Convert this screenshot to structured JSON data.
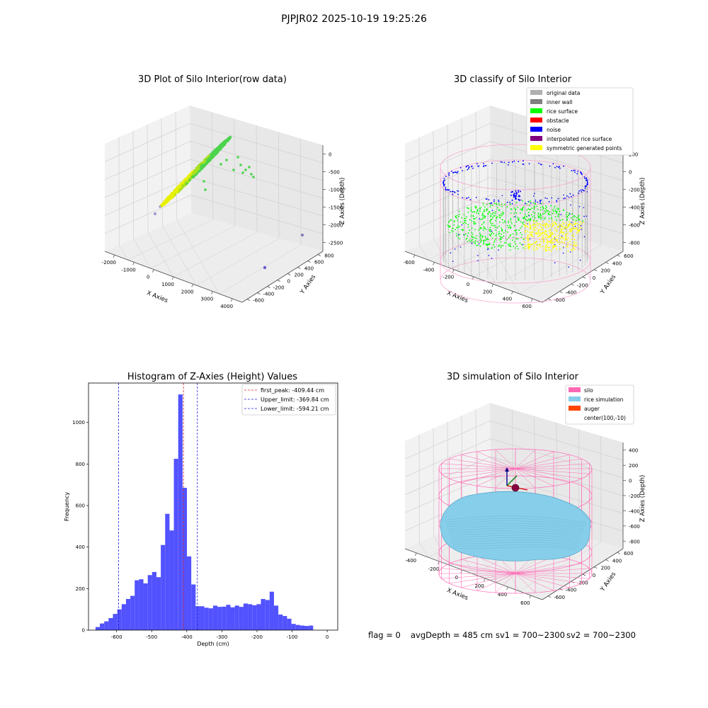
{
  "suptitle": "PJPJR02 2025-10-19 19:25:26",
  "status_line": {
    "flag": "flag = 0",
    "avg_depth": "avgDepth = 485 cm",
    "sv1": "sv1 = 700~2300",
    "sv2": "sv2 = 700~2300"
  },
  "colors": {
    "hist_bar": "#5252ff",
    "peak_line": "#e02020",
    "limit_line": "#2020e0",
    "rice_yellow": "#e8f000",
    "rice_green": "#4cd44c",
    "silo_pink": "#ff69b4",
    "rice_blue": "#87ceeb",
    "auger": "#ff4500",
    "inner_wall": "#808080",
    "original": "#b0b0b0",
    "noise": "#0000ff",
    "rice_surface": "#00ff00",
    "obstacle": "#ff0000",
    "interp": "#800080",
    "sym": "#ffff00"
  },
  "chart_data": [
    {
      "type": "scatter",
      "title": "3D Plot of Silo Interior(row data)",
      "xlabel": "X Axies",
      "ylabel": "Y Axies",
      "zlabel": "Z Axies (Depth)",
      "x_ticks": [
        "-2000",
        "-1000",
        "0",
        "1000",
        "2000",
        "3000",
        "4000"
      ],
      "y_ticks": [
        "-600",
        "-400",
        "-200",
        "0",
        "200",
        "400",
        "600",
        "800"
      ],
      "z_ticks": [
        "0",
        "-500",
        "-1000",
        "-1500",
        "-2000",
        "-2500"
      ],
      "xlim": [
        -2400,
        4200
      ],
      "ylim": [
        -700,
        900
      ],
      "zlim": [
        -2800,
        100
      ]
    },
    {
      "type": "scatter",
      "title": "3D classify of Silo Interior",
      "xlabel": "X Axies",
      "ylabel": "Y Axies",
      "zlabel": "Z Axies (Depth)",
      "x_ticks": [
        "-600",
        "-400",
        "-200",
        "0",
        "200",
        "400",
        "600"
      ],
      "y_ticks": [
        "-600",
        "-400",
        "-200",
        "0",
        "200",
        "400",
        "600"
      ],
      "z_ticks": [
        "200",
        "0",
        "-200",
        "-400",
        "-600",
        "-800"
      ],
      "legend": [
        {
          "label": "original data",
          "color": "#b0b0b0"
        },
        {
          "label": "inner wall",
          "color": "#808080"
        },
        {
          "label": "rice surface",
          "color": "#00ff00"
        },
        {
          "label": "obstacle",
          "color": "#ff0000"
        },
        {
          "label": "noise",
          "color": "#0000ff"
        },
        {
          "label": "interpolated rice surface",
          "color": "#800080"
        },
        {
          "label": "symmetric generated points",
          "color": "#ffff00"
        }
      ],
      "legend_placement": "upper right"
    },
    {
      "type": "bar",
      "title": "Histogram of Z-Axies (Height) Values",
      "xlabel": "Depth (cm)",
      "ylabel": "Frequency",
      "x_ticks": [
        -600,
        -500,
        -400,
        -300,
        -200,
        -100,
        0
      ],
      "y_ticks": [
        0,
        200,
        400,
        600,
        800,
        1000
      ],
      "xlim": [
        -680,
        30
      ],
      "ylim": [
        0,
        1190
      ],
      "bin_start": -660,
      "bin_width": 12.4,
      "values": [
        15,
        32,
        42,
        58,
        78,
        100,
        125,
        150,
        165,
        240,
        245,
        225,
        265,
        280,
        255,
        410,
        560,
        480,
        825,
        1135,
        685,
        355,
        220,
        115,
        115,
        108,
        105,
        118,
        112,
        113,
        122,
        110,
        118,
        112,
        128,
        125,
        120,
        125,
        150,
        145,
        185,
        118,
        75,
        68,
        55,
        30,
        25,
        22,
        20,
        22
      ],
      "lines": [
        {
          "label": "first_peak: -409.44 cm",
          "x": -409.44,
          "color": "#e02020"
        },
        {
          "label": "Upper_limit: -369.84 cm",
          "x": -369.84,
          "color": "#2020e0"
        },
        {
          "label": "Lower_limit: -594.21 cm",
          "x": -594.21,
          "color": "#2020e0"
        }
      ],
      "legend_placement": "upper right",
      "grid": false
    },
    {
      "type": "scatter",
      "title": "3D simulation of Silo Interior",
      "xlabel": "X Axies",
      "ylabel": "Y Axies",
      "zlabel": "Z Axies (Depth)",
      "x_ticks": [
        "-400",
        "-200",
        "0",
        "200",
        "400",
        "600"
      ],
      "y_ticks": [
        "-600",
        "-400",
        "-200",
        "0",
        "200",
        "400",
        "600"
      ],
      "z_ticks": [
        "400",
        "200",
        "0",
        "-200",
        "-400",
        "-600",
        "-800"
      ],
      "legend": [
        {
          "label": "silo",
          "color": "#ff69b4"
        },
        {
          "label": "rice simulation",
          "color": "#87ceeb"
        },
        {
          "label": "auger",
          "color": "#ff4500"
        },
        {
          "label": "center(100,-10)",
          "color": ""
        }
      ],
      "legend_placement": "upper right"
    }
  ]
}
